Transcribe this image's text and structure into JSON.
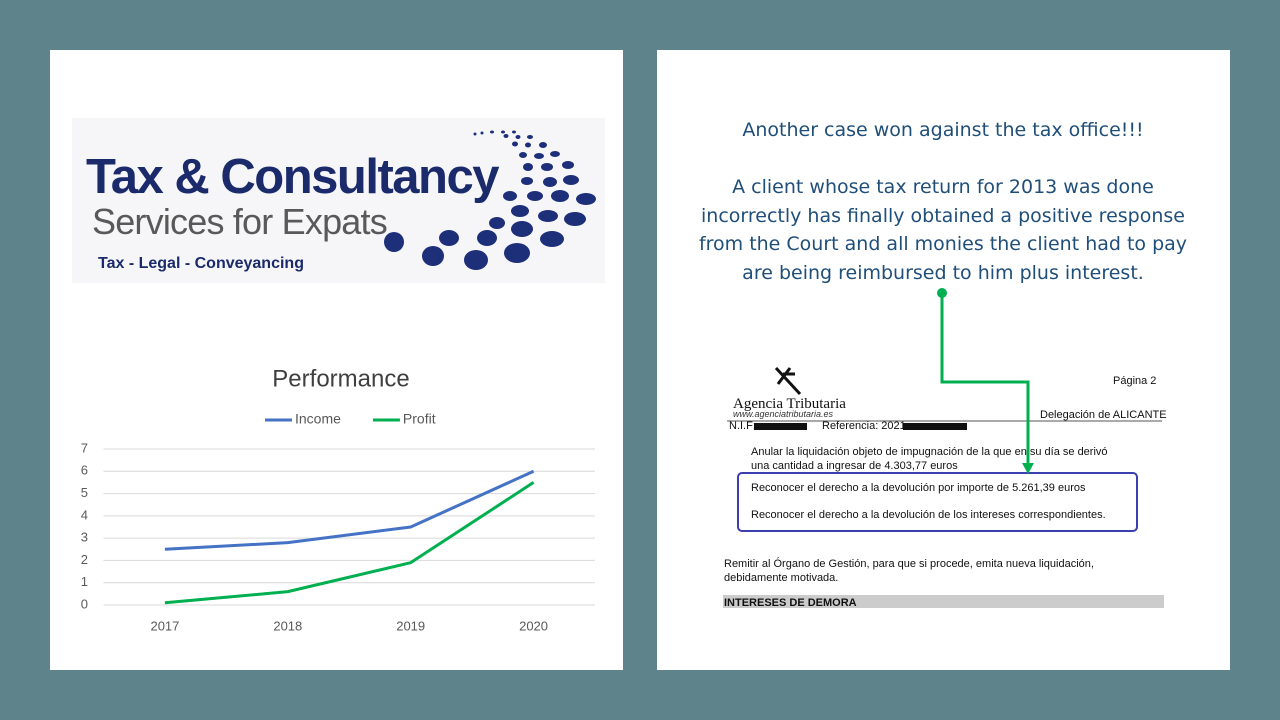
{
  "logo": {
    "title": "Tax & Consultancy",
    "subtitle": "Services for Expats",
    "tagline": "Tax - Legal - Conveyancing"
  },
  "chart_data": {
    "type": "line",
    "title": "Performance",
    "categories": [
      "2017",
      "2018",
      "2019",
      "2020"
    ],
    "series": [
      {
        "name": "Income",
        "color": "#4472c4",
        "values": [
          2.5,
          2.8,
          3.5,
          6
        ]
      },
      {
        "name": "Profit",
        "color": "#00b050",
        "values": [
          0.1,
          0.6,
          1.9,
          5.5
        ]
      }
    ],
    "ylim": [
      0,
      7
    ],
    "yticks": [
      0,
      1,
      2,
      3,
      4,
      5,
      6,
      7
    ],
    "grid": true,
    "legend": "top"
  },
  "announcement": {
    "title": "Another case won against the tax office!!!",
    "body": [
      "A client whose tax return for 2013 was done",
      "incorrectly has finally obtained a positive response",
      "from the Court and all monies the client had to pay",
      "are being reimbursed to him plus interest."
    ]
  },
  "document": {
    "agency": "Agencia Tributaria",
    "website": "www.agenciatributaria.es",
    "page": "Página 2",
    "office": "Delegación de ALICANTE",
    "nif": "N.I.F:",
    "reference": "Referencia: 2021",
    "paragraph1": [
      "Anular la liquidación objeto de impugnación de la que en su día se derivó",
      "una cantidad a ingresar de 4.303,77 euros"
    ],
    "boxed": [
      "Reconocer el derecho a la devolución por importe de 5.261,39 euros",
      "Reconocer el derecho a la devolución de los intereses correspondientes."
    ],
    "paragraph2": [
      "Remitir al Órgano de Gestión, para que si procede, emita nueva liquidación,",
      "debidamente motivada."
    ],
    "section": "INTERESES DE DEMORA"
  }
}
